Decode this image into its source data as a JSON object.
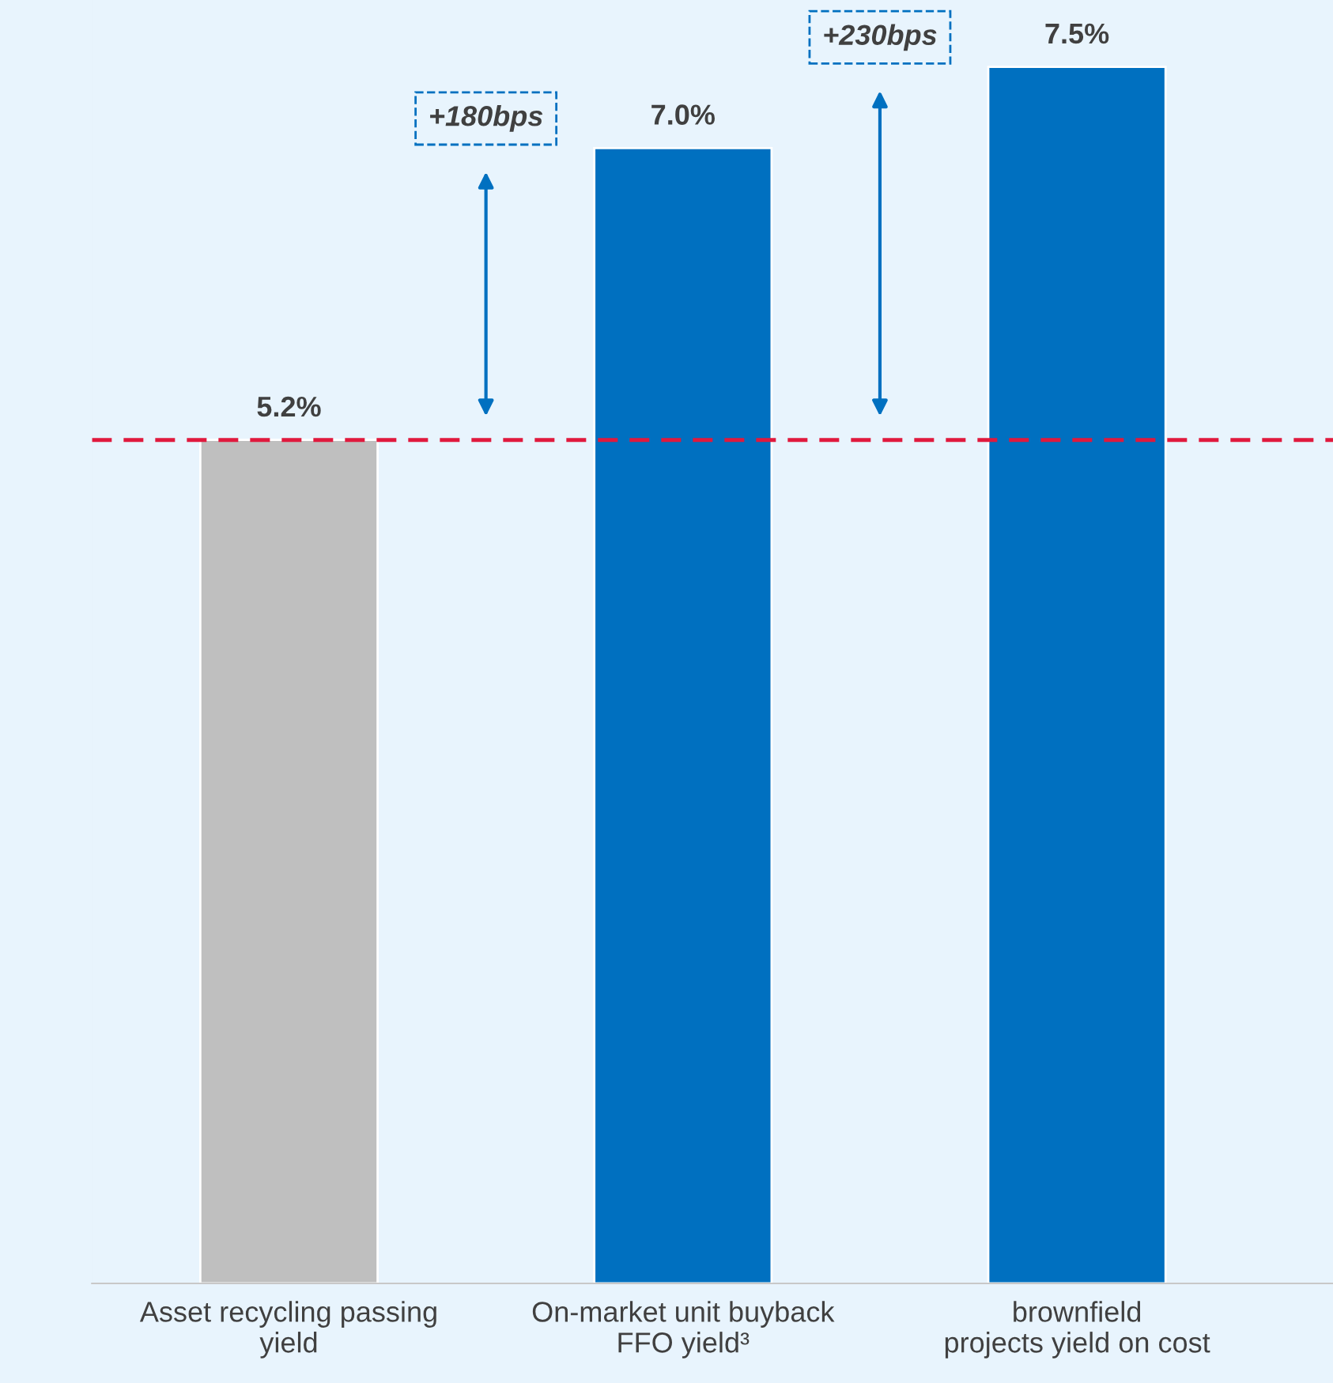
{
  "chart_data": {
    "type": "bar",
    "categories": [
      "Asset recycling passing\nyield",
      "On-market unit buyback\nFFO yield³",
      "brownfield\nprojects yield on cost"
    ],
    "values": [
      5.2,
      7.0,
      7.5
    ],
    "colors": [
      "#bfbfbf",
      "#0070c0",
      "#0070c0"
    ],
    "value_labels": [
      "5.2%",
      "7.0%",
      "7.5%"
    ],
    "ref_lines": [
      {
        "axis": "y",
        "value": 5.2,
        "color": "#e0193d",
        "line_style": "dashed"
      }
    ],
    "annotations": [
      "+180bps",
      "+230bps"
    ],
    "grid": false
  }
}
